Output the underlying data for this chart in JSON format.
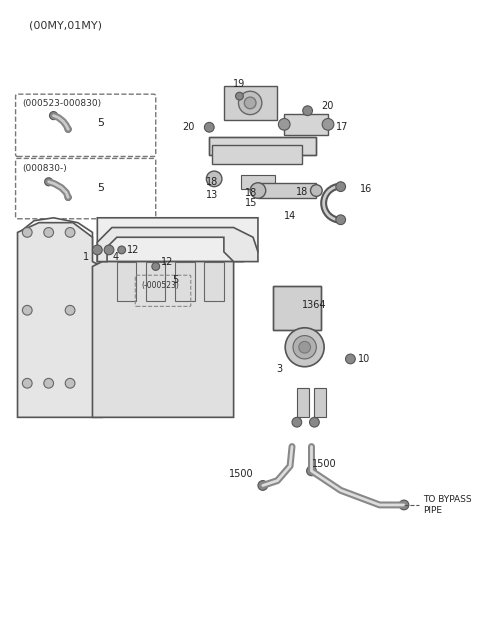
{
  "title": "(00MY,01MY)",
  "bg_color": "#ffffff",
  "line_color": "#555555",
  "dark_color": "#333333",
  "label_color": "#222222",
  "fig_width": 4.8,
  "fig_height": 6.4,
  "dpi": 100,
  "labels": {
    "title": "(00MY,01MY)",
    "box1_title": "(000523-000830)",
    "box1_num": "5",
    "box2_title": "(000830-)",
    "box2_num": "5",
    "num1": "1",
    "num3": "3",
    "num4": "4",
    "num5": "5",
    "num10": "10",
    "num12a": "12",
    "num12b": "12",
    "num13": "13",
    "num14": "14",
    "num15": "15",
    "num16": "16",
    "num17": "17",
    "num18a": "18",
    "num18b": "18",
    "num18c": "18",
    "num19": "19",
    "num20a": "20",
    "num20b": "20",
    "num1364": "1364",
    "num1500a": "1500",
    "num1500b": "1500",
    "bypass": "TO BYPASS\nPIPE",
    "neg000523": "(-000523)",
    "num5_small": "5"
  }
}
